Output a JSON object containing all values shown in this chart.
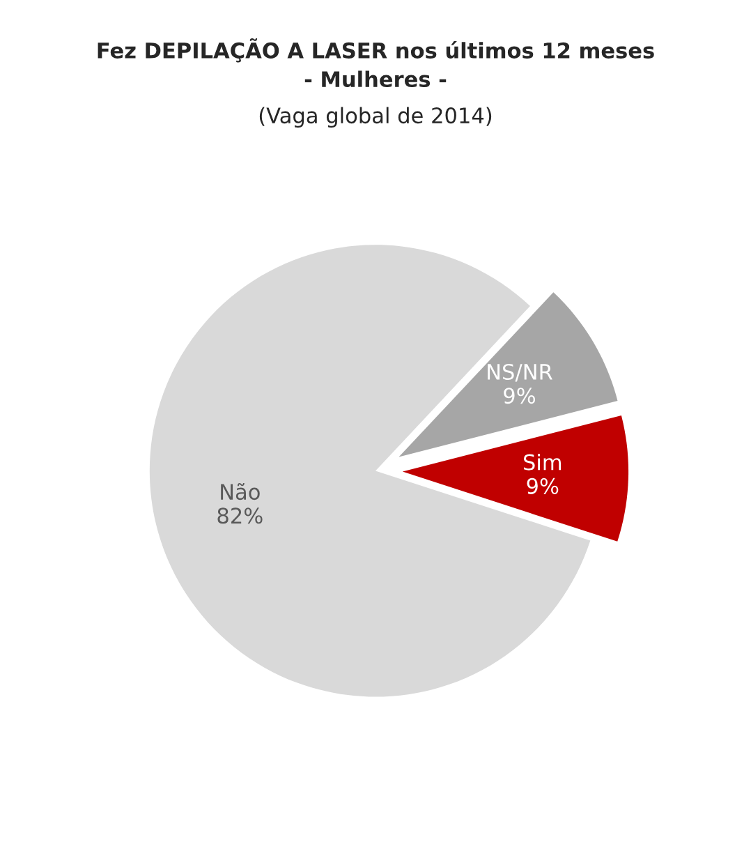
{
  "chart_data": {
    "type": "pie",
    "title": "Fez DEPILAÇÃO A LASER nos últimos 12 meses\n- Mulheres -",
    "subtitle": "(Vaga global de 2014)",
    "categories": [
      "Sim",
      "NS/NR",
      "Não"
    ],
    "values": [
      9,
      9,
      82
    ],
    "colors": [
      "#c00000",
      "#a6a6a6",
      "#d9d9d9"
    ],
    "value_labels": [
      "9%",
      "9%",
      "82%"
    ]
  }
}
